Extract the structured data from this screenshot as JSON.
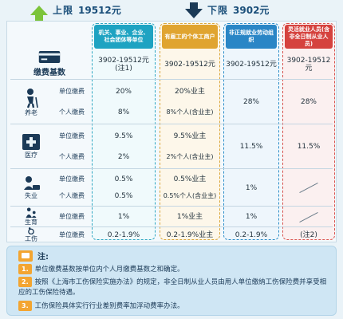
{
  "limits": {
    "upper_label": "上限",
    "upper_value": "19512元",
    "lower_label": "下限",
    "lower_value": "3902元"
  },
  "columns": [
    "机关、事业、企业、社会团体等单位",
    "有雇工的个体工商户",
    "非正规就业劳动组织",
    "灵活就业人员(含非全日制从业人员)"
  ],
  "base": {
    "label": "缴费基数",
    "c1": "3902-19512元(注1)",
    "c2": "3902-19512元",
    "c3": "3902-19512元",
    "c4": "3902-19512元"
  },
  "pension": {
    "label": "养老",
    "unit_label": "单位缴费",
    "personal_label": "个人缴费",
    "unit_c1": "20%",
    "unit_c2": "20%业主",
    "personal_c1": "8%",
    "personal_c2": "8%个人(含业主)",
    "c3": "28%",
    "c4": "28%"
  },
  "medical": {
    "label": "医疗",
    "unit_label": "单位缴费",
    "personal_label": "个人缴费",
    "unit_c1": "9.5%",
    "unit_c2": "9.5%业主",
    "personal_c1": "2%",
    "personal_c2": "2%个人(含业主)",
    "c3": "11.5%",
    "c4": "11.5%"
  },
  "unemployment": {
    "label": "失业",
    "unit_label": "单位缴费",
    "personal_label": "个人缴费",
    "unit_c1": "0.5%",
    "unit_c2": "0.5%业主",
    "personal_c1": "0.5%",
    "personal_c2": "0.5%个人(含业主)",
    "c3": "1%"
  },
  "maternity": {
    "label": "生育",
    "unit_label": "单位缴费",
    "c1": "1%",
    "c2": "1%业主",
    "c3": "1%"
  },
  "injury": {
    "label": "工伤",
    "unit_label": "单位缴费",
    "c1": "0.2-1.9%",
    "c2": "0.2-1.9%业主",
    "c3": "0.2-1.9%",
    "c4": "(注2)"
  },
  "notes": {
    "title": "注:",
    "n1_num": "1.",
    "n1": "单位缴费基数按单位内个人月缴费基数之和确定。",
    "n2_num": "2.",
    "n2": "按照《上海市工伤保险实施办法》的规定，非全日制从业人员由用人单位缴纳工伤保险费并享受相应的工伤保险待遇。",
    "n3_num": "3.",
    "n3": "工伤保险具体实行行业差别费率加浮动费率办法。"
  },
  "colors": {
    "accent_green": "#7cc43a",
    "accent_navy": "#1b3a57",
    "col1": "#1ea3c2",
    "col2": "#e0a430",
    "col3": "#2a86c6",
    "col4": "#d5423e",
    "note_orange": "#f3a531"
  }
}
